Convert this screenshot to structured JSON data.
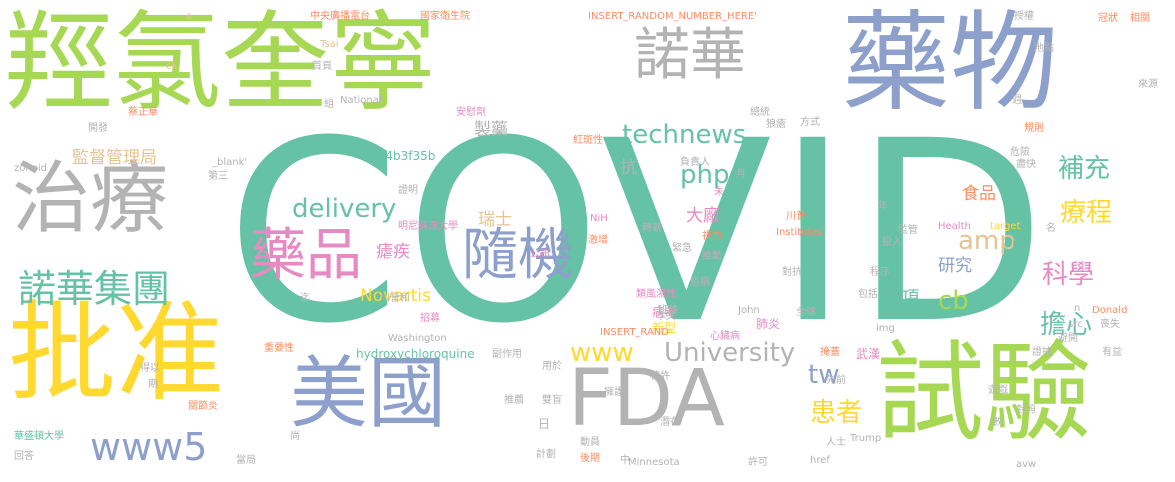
{
  "words": {
    "covid": "COVID",
    "hydroxychloroquine_zh": "羥氯奎寧",
    "drug": "藥物",
    "novartis_zh": "諾華",
    "treatment": "治療",
    "approve": "批准",
    "usa": "美國",
    "fda": "FDA",
    "trial": "試驗",
    "novartis_group": "諾華集團",
    "pharma": "藥品",
    "random": "隨機",
    "www5": "www5",
    "technews": "technews",
    "delivery": "delivery",
    "php": "php",
    "amp": "amp",
    "supplement": "補充",
    "course": "療程",
    "science": "科學",
    "worry": "擔心",
    "patient": "患者",
    "www": "www",
    "university": "University",
    "tw": "tw",
    "cb": "cb",
    "research": "研究",
    "say": "說",
    "item": "項",
    "novartis": "Novartis",
    "big_factory": "大廠",
    "switzerland": "瑞士",
    "malaria": "瘧疾",
    "food": "食品",
    "regulator": "監督管理局",
    "pharmaceutical": "製藥",
    "anti": "抗",
    "a4b": "a4b3f35b",
    "hcq": "hydroxychloroquine",
    "virus": "病毒",
    "novel": "新型",
    "pneumonia": "肺炎",
    "wuhan": "武漢",
    "day": "日",
    "insert_random_top": "INSERT_RANDOM_NUMBER_HERE'",
    "insert_random_mid": "INSERT_RAND",
    "cctv": "中央廣播電台",
    "nih_zh": "國家衛生院",
    "tsai": "Tsai",
    "national": "National",
    "cai_zhenghua": "蔡正華",
    "placebo": "安慰劑",
    "blank": "_blank'",
    "zoneid": "zoneid",
    "lupus": "紅斑性",
    "president": "總統",
    "wolf": "狼瘡",
    "way": "方式",
    "person_in_charge": "負責人",
    "symptom": "冠狀",
    "related": "相關",
    "authorize": "授權",
    "location": "地點",
    "source": "來源",
    "rules": "規則",
    "danger": "危險",
    "soon": "盡快",
    "health": "Health",
    "target": "target",
    "institutes": "Institutes",
    "nih": "NiH",
    "surge": "激增",
    "announce": "公布",
    "minnesota_univ": "明尼蘇達大學",
    "trump_zh": "川普",
    "trump_and": "川普和",
    "vision": "視力",
    "invest": "投入",
    "supervise": "監管",
    "year": "年",
    "referral": "轉載",
    "emergency": "緊急",
    "promote": "推動",
    "confront": "對抗",
    "program": "程序",
    "include": "包括",
    "recruit": "招募",
    "rheumatoid": "類風濕性",
    "side_effect": "副作用",
    "washington": "Washington",
    "john": "John",
    "this_article": "本文",
    "heart_disease": "心臟病",
    "global": "全球",
    "mask": "掩蓋",
    "importance": "重要性",
    "can_be": "得以",
    "period": "期",
    "arthritis": "關節炎",
    "washington_univ": "華盛頓大學",
    "answer": "回答",
    "authority": "當局",
    "plan": "計劃",
    "later": "後期",
    "recommend": "推薦",
    "double_blind": "雙盲",
    "mobilize": "動員",
    "protect": "擁護",
    "potential": "潛在",
    "minnesota": "Minnesota",
    "permit": "許可",
    "href": "href",
    "evidence": "證據",
    "game": "遊戲",
    "number": "數",
    "comparison": "對照",
    "people": "人士",
    "avw": "avw",
    "trump": "Trump",
    "donald": "Donald",
    "loss": "喪失",
    "beneficial": "有益",
    "avoid": "避開",
    "src": "src",
    "img": "img",
    "first_page": "首頁",
    "group": "組",
    "develop": "開發",
    "third": "第三",
    "prove": "證明",
    "until": "迄",
    "nominal": "俗稱",
    "class_zh": "班韓",
    "core": "核許",
    "prior": "先前",
    "use_in": "用於",
    "middle": "中",
    "month": "月",
    "not_yet": "未",
    "week": "週",
    "name": "名",
    "still": "尚",
    "a": "a",
    "ck": "ck",
    "n": "n"
  }
}
